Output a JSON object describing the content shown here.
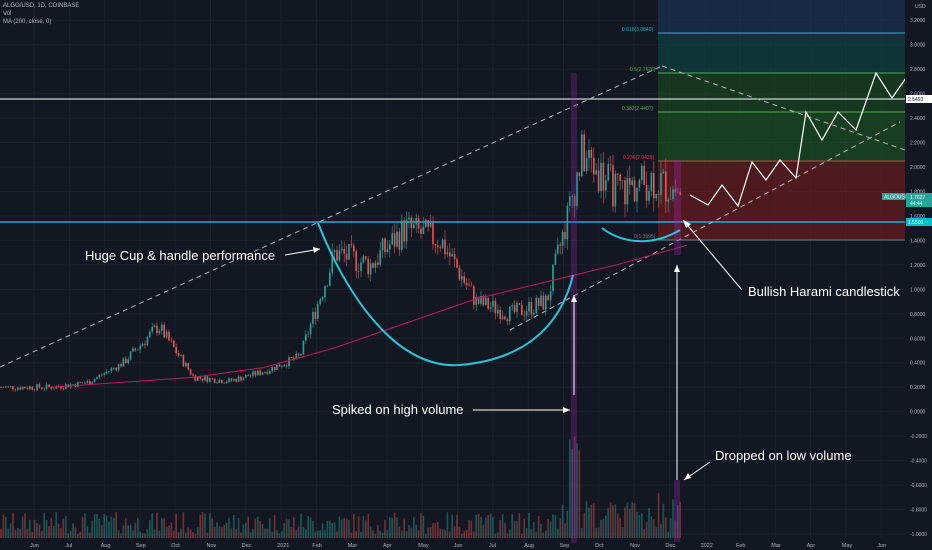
{
  "header": {
    "symbol": "ALGO/USD, 1D, COINBASE",
    "vol_label": "Vol",
    "ma_label": "MA (200, close, 0)"
  },
  "chart_data": {
    "type": "line",
    "title": "ALGO/USD, 1D, COINBASE",
    "currency_label": "USD",
    "ylim": [
      -1.0,
      3.3
    ],
    "y_ticks": [
      "3.2000",
      "3.0000",
      "2.8000",
      "2.6000",
      "2.4000",
      "2.2000",
      "2.0000",
      "1.8000",
      "1.6000",
      "1.4000",
      "1.2000",
      "1.0000",
      "0.8000",
      "0.6000",
      "0.4000",
      "0.2000",
      "0.0000",
      "-0.2000",
      "-0.4000",
      "-0.6000",
      "-0.8000",
      "-1.0000"
    ],
    "x_ticks": [
      "Jun",
      "Jul",
      "Aug",
      "Sep",
      "Oct",
      "Nov",
      "Dec",
      "2021",
      "Feb",
      "Mar",
      "Apr",
      "May",
      "Jun",
      "Jul",
      "Aug",
      "Sep",
      "Oct",
      "Nov",
      "Dec",
      "2022",
      "Feb",
      "Mar",
      "Apr",
      "May",
      "Jun"
    ],
    "series": [
      {
        "name": "ALGO/USD",
        "x": [
          "2020-06",
          "2020-07",
          "2020-08",
          "2020-09",
          "2020-10",
          "2020-11",
          "2020-12",
          "2021-01",
          "2021-02",
          "2021-03",
          "2021-04",
          "2021-05",
          "2021-06",
          "2021-07",
          "2021-08",
          "2021-09",
          "2021-10",
          "2021-11",
          "2021-12"
        ],
        "y": [
          0.2,
          0.24,
          0.4,
          0.7,
          0.28,
          0.25,
          0.33,
          0.45,
          1.3,
          1.2,
          1.5,
          1.4,
          0.9,
          0.8,
          0.9,
          2.1,
          1.8,
          1.9,
          1.76
        ]
      },
      {
        "name": "MA (200, close, 0)",
        "x": [
          "2020-06",
          "2020-08",
          "2020-10",
          "2020-12",
          "2021-02",
          "2021-04",
          "2021-06",
          "2021-08",
          "2021-10",
          "2021-12"
        ],
        "y": [
          0.2,
          0.24,
          0.28,
          0.36,
          0.52,
          0.72,
          0.92,
          1.06,
          1.2,
          1.36
        ]
      }
    ],
    "projection": {
      "x": [
        "2021-12",
        "2022-01",
        "2022-02",
        "2022-03",
        "2022-04",
        "2022-05",
        "2022-06"
      ],
      "y": [
        1.8,
        1.6,
        2.0,
        1.8,
        2.5,
        2.3,
        2.6
      ]
    },
    "price_label": {
      "symbol": "ALGOUSD",
      "price": "1.7627",
      "countdown": "44:44"
    },
    "horizontal_levels": [
      {
        "value": "2.5493",
        "color": "#ffffff"
      },
      {
        "value": "1.5500",
        "color": "#00bcd4"
      }
    ],
    "fib_levels": [
      {
        "label": "0.618(3.0840)",
        "value": 3.084,
        "color": "#00bcd4"
      },
      {
        "label": "0.5(2.7626)",
        "value": 2.7626,
        "color": "#4caf50"
      },
      {
        "label": "0.382(2.4407)",
        "value": 2.4407,
        "color": "#4caf50"
      },
      {
        "label": "0.236(2.0429)",
        "value": 2.0429,
        "color": "#f23645"
      },
      {
        "label": "0(1.3995)",
        "value": 1.3995,
        "color": "#787b86"
      }
    ],
    "annotations": [
      "Huge Cup & handle performance",
      "Bullish Harami candlestick",
      "Spiked on high volume",
      "Dropped on low volume"
    ],
    "colors": {
      "background": "#131722",
      "up": "#26a69a",
      "down": "#ef5350",
      "cup": "#26c6da",
      "ma": "#c2185b",
      "channel": "#b2b5be",
      "fib_blue": "#1e3a5f",
      "fib_green": "#1b5e20",
      "fib_red": "#7f1d1d"
    }
  }
}
